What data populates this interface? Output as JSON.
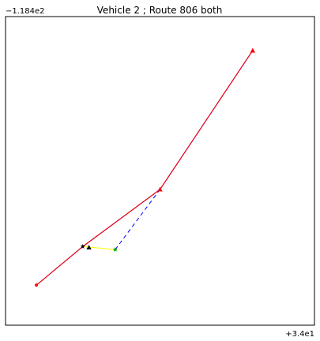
{
  "chart_data": {
    "type": "line",
    "title": "Vehicle 2 ; Route 806 both",
    "xlabel": "",
    "ylabel": "",
    "x_offset_label": "+3.4e1",
    "y_offset_label": "−1.184e2",
    "grid": false,
    "legend": "none",
    "xlim": [
      0,
      10
    ],
    "ylim": [
      0,
      10
    ],
    "series": [
      {
        "style": "solid",
        "color": "#ff0000",
        "x": [
          1.0,
          2.5,
          5.0,
          8.0
        ],
        "y": [
          1.3,
          2.55,
          4.4,
          8.9
        ]
      },
      {
        "style": "solid",
        "color": "#0000cc",
        "x": [
          1.0,
          2.5,
          5.0,
          8.0
        ],
        "y": [
          1.3,
          2.55,
          4.4,
          8.9
        ]
      },
      {
        "style": "dashed",
        "color": "#0000ff",
        "x": [
          5.0,
          3.55
        ],
        "y": [
          4.4,
          2.45
        ]
      },
      {
        "style": "solid",
        "color": "#ffff00",
        "x": [
          2.5,
          3.55
        ],
        "y": [
          2.55,
          2.45
        ]
      }
    ],
    "markers": [
      {
        "kind": "triangle",
        "color": "#ff0000",
        "x": 8.0,
        "y": 8.9
      },
      {
        "kind": "triangle",
        "color": "#ff0000",
        "x": 5.0,
        "y": 4.4
      },
      {
        "kind": "triangle",
        "color": "#000000",
        "x": 2.7,
        "y": 2.52
      },
      {
        "kind": "star",
        "color": "#00aa00",
        "x": 3.55,
        "y": 2.45
      },
      {
        "kind": "star",
        "color": "#000000",
        "x": 2.5,
        "y": 2.55
      },
      {
        "kind": "dot",
        "color": "#ff0000",
        "x": 1.0,
        "y": 1.3
      }
    ]
  }
}
